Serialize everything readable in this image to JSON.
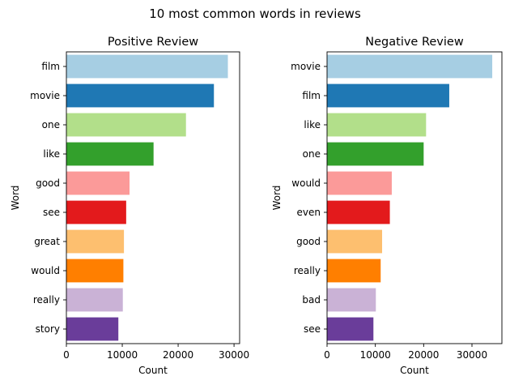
{
  "suptitle": "10 most common words in reviews",
  "chart_data": [
    {
      "type": "bar",
      "orientation": "horizontal",
      "title": "Positive Review",
      "xlabel": "Count",
      "ylabel": "Word",
      "categories": [
        "film",
        "movie",
        "one",
        "like",
        "good",
        "see",
        "great",
        "would",
        "really",
        "story"
      ],
      "values": [
        28900,
        26400,
        21400,
        15600,
        11300,
        10700,
        10300,
        10200,
        10100,
        9300
      ],
      "xlim": [
        0,
        31000
      ],
      "xticks": [
        0,
        10000,
        20000,
        30000
      ],
      "grid": false,
      "colors": [
        "#a6cee3",
        "#1f78b4",
        "#b2df8a",
        "#33a02c",
        "#fb9a99",
        "#e31a1c",
        "#fdbf6f",
        "#ff7f00",
        "#cab2d6",
        "#6a3d9a"
      ]
    },
    {
      "type": "bar",
      "orientation": "horizontal",
      "title": "Negative Review",
      "xlabel": "Count",
      "ylabel": "Word",
      "categories": [
        "movie",
        "film",
        "like",
        "one",
        "would",
        "even",
        "good",
        "really",
        "bad",
        "see"
      ],
      "values": [
        34200,
        25300,
        20500,
        20000,
        13400,
        13000,
        11400,
        11100,
        10100,
        9600
      ],
      "xlim": [
        0,
        36200
      ],
      "xticks": [
        0,
        10000,
        20000,
        30000
      ],
      "grid": false,
      "colors": [
        "#a6cee3",
        "#1f78b4",
        "#b2df8a",
        "#33a02c",
        "#fb9a99",
        "#e31a1c",
        "#fdbf6f",
        "#ff7f00",
        "#cab2d6",
        "#6a3d9a"
      ]
    }
  ]
}
